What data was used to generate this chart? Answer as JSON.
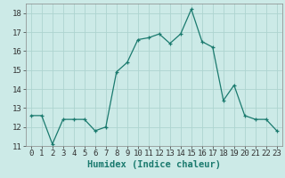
{
  "x": [
    0,
    1,
    2,
    3,
    4,
    5,
    6,
    7,
    8,
    9,
    10,
    11,
    12,
    13,
    14,
    15,
    16,
    17,
    18,
    19,
    20,
    21,
    22,
    23
  ],
  "y": [
    12.6,
    12.6,
    11.1,
    12.4,
    12.4,
    12.4,
    11.8,
    12.0,
    14.9,
    15.4,
    16.6,
    16.7,
    16.9,
    16.4,
    16.9,
    18.2,
    16.5,
    16.2,
    13.4,
    14.2,
    12.6,
    12.4,
    12.4,
    11.8
  ],
  "line_color": "#1a7a6e",
  "marker": "+",
  "marker_size": 3,
  "bg_color": "#cceae7",
  "grid_color": "#aed4d0",
  "xlabel": "Humidex (Indice chaleur)",
  "ylim": [
    11,
    18.5
  ],
  "xlim": [
    -0.5,
    23.5
  ],
  "yticks": [
    11,
    12,
    13,
    14,
    15,
    16,
    17,
    18
  ],
  "xticks": [
    0,
    1,
    2,
    3,
    4,
    5,
    6,
    7,
    8,
    9,
    10,
    11,
    12,
    13,
    14,
    15,
    16,
    17,
    18,
    19,
    20,
    21,
    22,
    23
  ],
  "tick_fontsize": 6.5,
  "xlabel_fontsize": 7.5
}
